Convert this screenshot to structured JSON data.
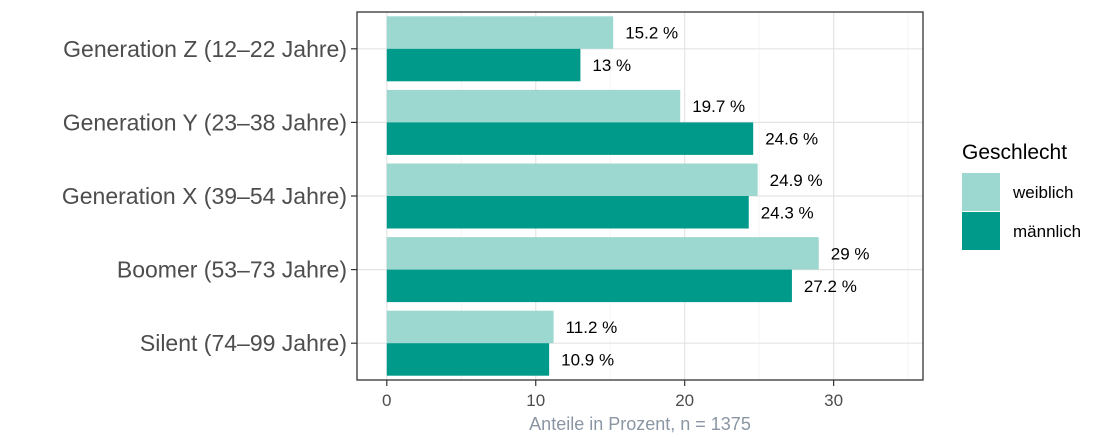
{
  "chart_data": {
    "type": "bar",
    "orientation": "horizontal",
    "categories": [
      "Generation Z (12–22 Jahre)",
      "Generation Y (23–38 Jahre)",
      "Generation X (39–54 Jahre)",
      "Boomer (53–73 Jahre)",
      "Silent (74–99 Jahre)"
    ],
    "series": [
      {
        "name": "weiblich",
        "color": "#9dd8d0",
        "values": [
          15.2,
          19.7,
          24.9,
          29,
          11.2
        ],
        "labels": [
          "15.2 %",
          "19.7 %",
          "24.9 %",
          "29 %",
          "11.2 %"
        ]
      },
      {
        "name": "männlich",
        "color": "#009a8a",
        "values": [
          13,
          24.6,
          24.3,
          27.2,
          10.9
        ],
        "labels": [
          "13 %",
          "24.6 %",
          "24.3 %",
          "27.2 %",
          "10.9 %"
        ]
      }
    ],
    "xlabel": "Anteile in Prozent, n = 1375",
    "ylabel": "",
    "xlim": [
      -2,
      36
    ],
    "xticks": [
      0,
      10,
      20,
      30
    ],
    "xtick_labels": [
      "0",
      "10",
      "20",
      "30"
    ],
    "grid": true,
    "legend": {
      "title": "Geschlecht",
      "position": "right"
    }
  }
}
